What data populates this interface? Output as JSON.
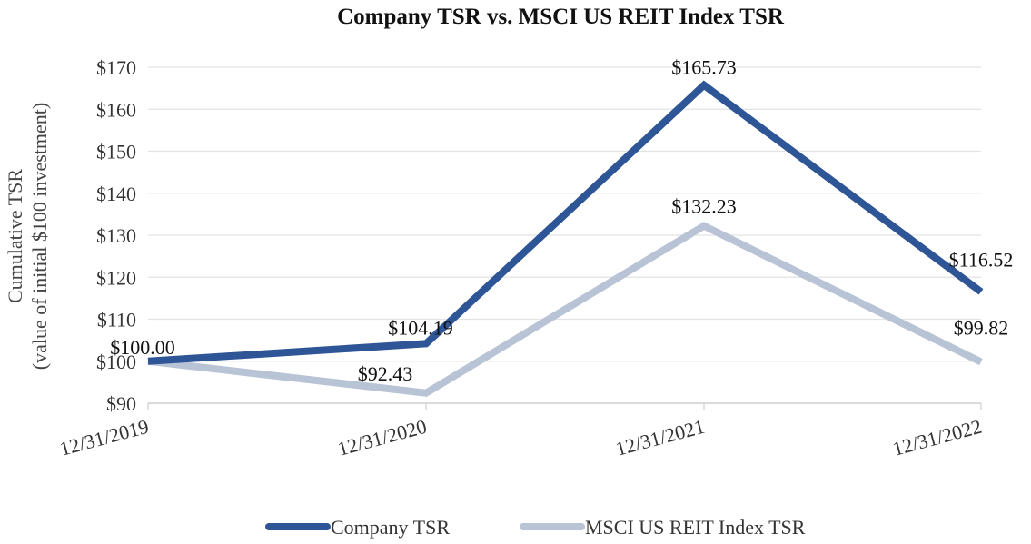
{
  "chart_data": {
    "type": "line",
    "title": "Company TSR vs. MSCI US REIT Index TSR",
    "ylabel_line1": "Cumulative TSR",
    "ylabel_line2": "(value of initial $100 investment)",
    "xlabel": "",
    "categories": [
      "12/31/2019",
      "12/31/2020",
      "12/31/2021",
      "12/31/2022"
    ],
    "ylim": [
      90,
      170
    ],
    "yticks": [
      90,
      100,
      110,
      120,
      130,
      140,
      150,
      160,
      170
    ],
    "ytick_labels": [
      "$90",
      "$100",
      "$110",
      "$120",
      "$130",
      "$140",
      "$150",
      "$160",
      "$170"
    ],
    "grid": true,
    "legend_position": "bottom",
    "series": [
      {
        "name": "Company TSR",
        "color": "#2e5596",
        "values": [
          100.0,
          104.19,
          165.73,
          116.52
        ],
        "labels": [
          "$100.00",
          "$104.19",
          "$165.73",
          "$116.52"
        ]
      },
      {
        "name": "MSCI US REIT Index TSR",
        "color": "#b8c4d5",
        "values": [
          100.0,
          92.43,
          132.23,
          99.82
        ],
        "labels": [
          "",
          "$92.43",
          "$132.23",
          "$99.82"
        ]
      }
    ]
  }
}
